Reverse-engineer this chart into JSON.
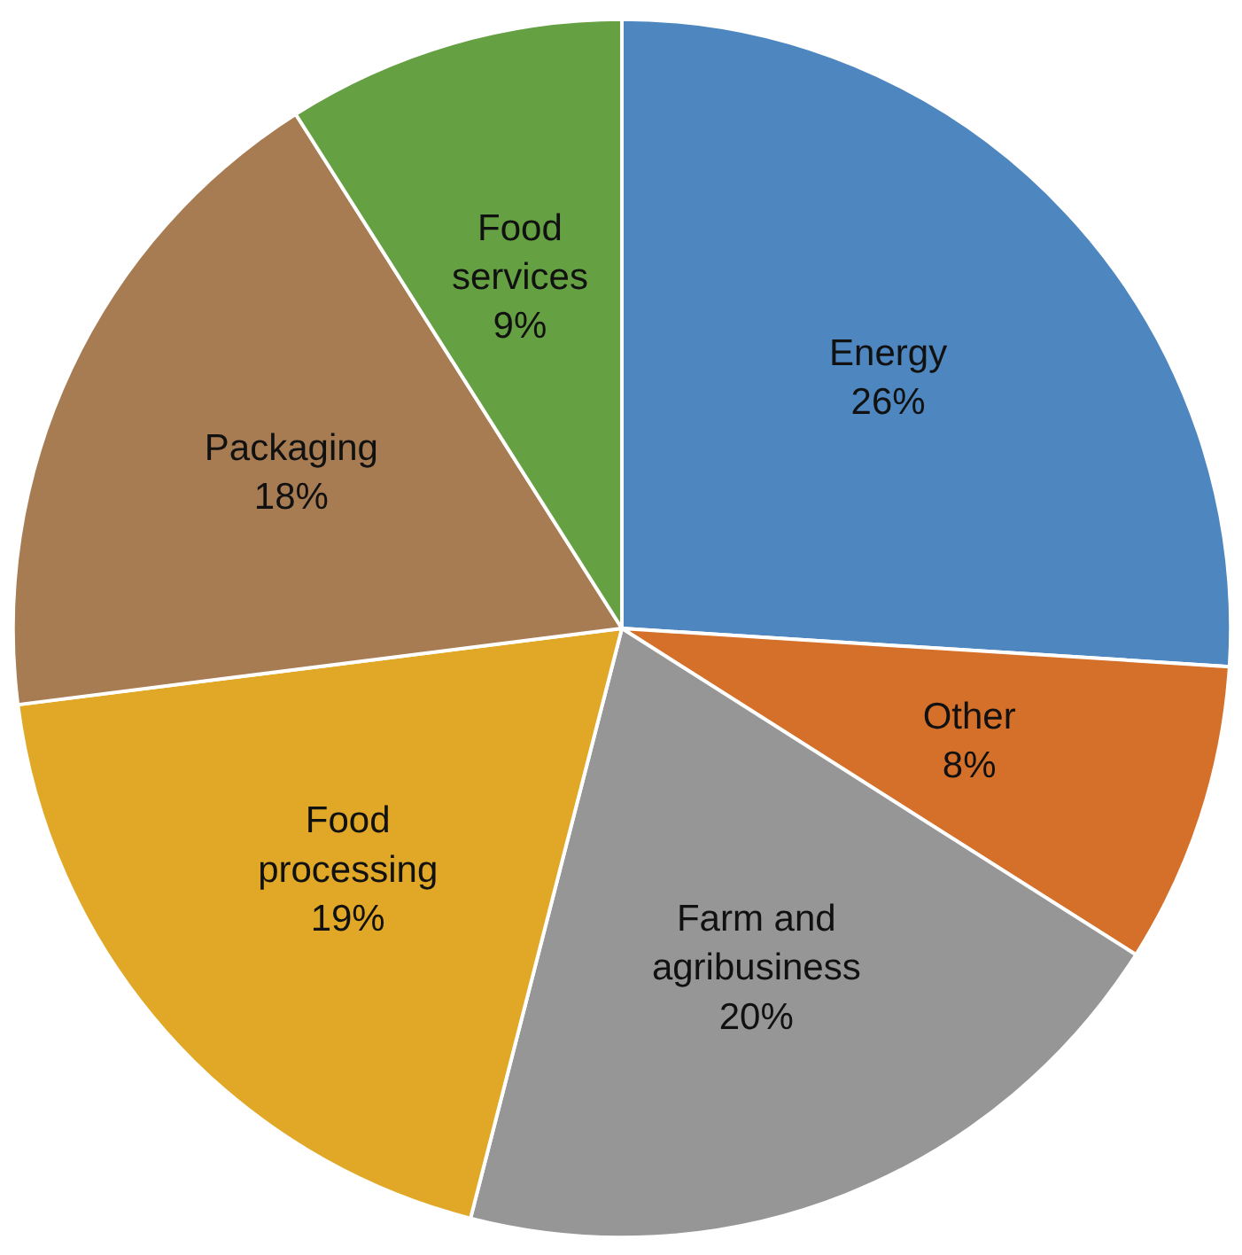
{
  "chart_data": {
    "type": "pie",
    "categories": [
      "Energy",
      "Other",
      "Farm and agribusiness",
      "Food processing",
      "Packaging",
      "Food services"
    ],
    "values": [
      26,
      8,
      20,
      19,
      18,
      9
    ],
    "value_labels": [
      "26%",
      "8%",
      "20%",
      "19%",
      "18%",
      "9%"
    ],
    "colors": [
      "#4e86bf",
      "#d5702b",
      "#969696",
      "#e0a826",
      "#a87c52",
      "#65a042"
    ]
  }
}
